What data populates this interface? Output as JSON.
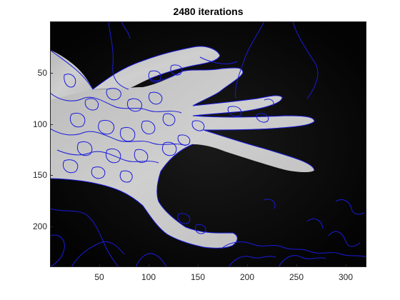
{
  "figure": {
    "title": "2480 iterations",
    "x_ticks": [
      "50",
      "100",
      "150",
      "200",
      "250",
      "300"
    ],
    "y_ticks": [
      "50",
      "100",
      "150",
      "200"
    ],
    "x_tick_values": [
      50,
      100,
      150,
      200,
      250,
      300
    ],
    "y_tick_values": [
      50,
      100,
      150,
      200
    ],
    "x_range": [
      0.5,
      320.5
    ],
    "y_range": [
      0.5,
      240.5
    ],
    "contour_color": "#1a1adb",
    "background_color": "#030303",
    "hand_color": "#c9c9c9"
  }
}
